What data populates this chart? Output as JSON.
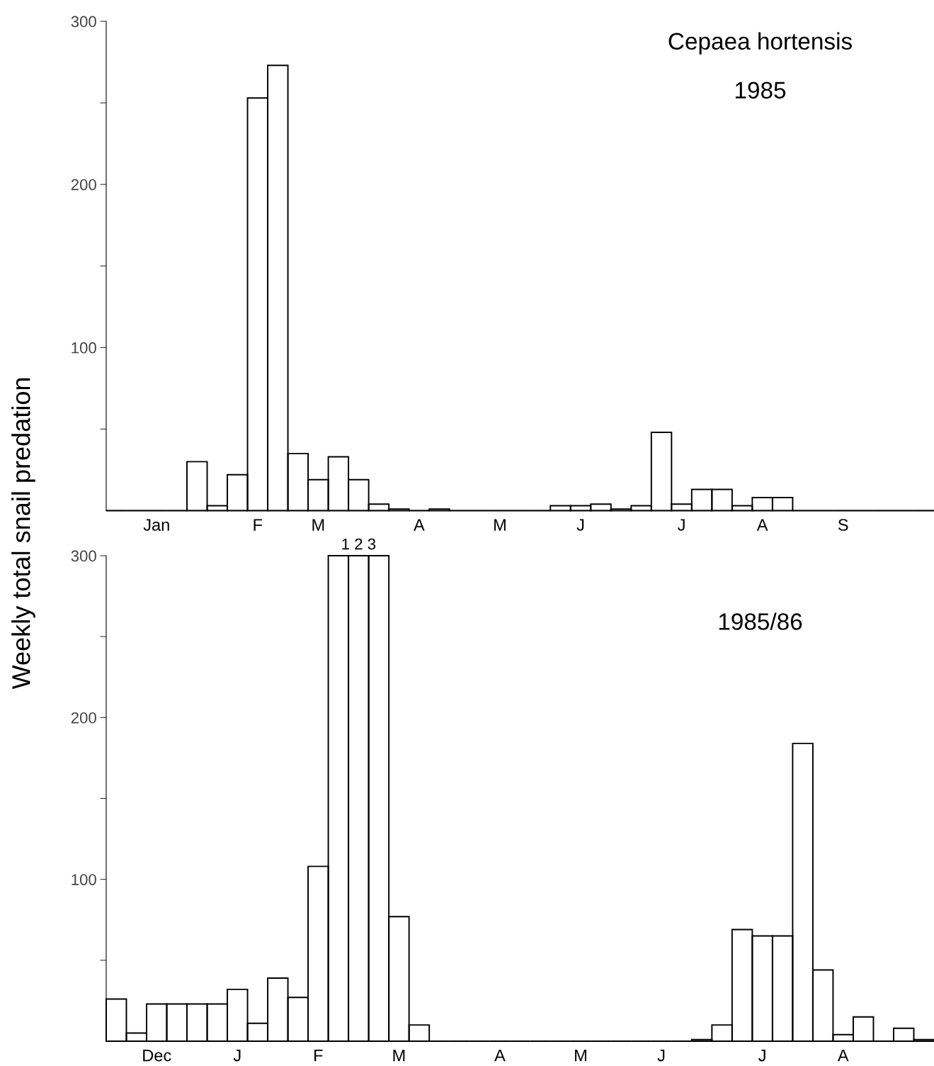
{
  "chart_data": [
    {
      "type": "bar",
      "title": "Cepaea hortensis",
      "subtitle": "1985",
      "ylabel": "Weekly total snail predation",
      "color": "#000000",
      "categories": [
        null,
        null,
        "Jan",
        null,
        null,
        null,
        null,
        "F",
        null,
        null,
        "M",
        null,
        null,
        null,
        null,
        "A",
        null,
        null,
        null,
        "M",
        null,
        null,
        null,
        "J",
        null,
        null,
        null,
        null,
        "J",
        null,
        null,
        null,
        "A",
        null,
        null,
        null,
        "S",
        null,
        null,
        null,
        null
      ],
      "values": [
        0,
        0,
        0,
        0,
        30,
        3,
        22,
        253,
        273,
        35,
        19,
        33,
        19,
        4,
        1,
        0,
        1,
        0,
        0,
        0,
        0,
        0,
        3,
        3,
        4,
        1,
        3,
        48,
        4,
        13,
        13,
        3,
        8,
        8,
        0,
        0,
        0,
        0,
        0,
        0,
        0
      ],
      "ylim": [
        0,
        300
      ],
      "yticks": [
        {
          "value": 50,
          "label": null
        },
        100,
        {
          "value": 150,
          "label": null
        },
        200,
        {
          "value": 250,
          "label": null
        },
        300
      ]
    },
    {
      "type": "bar",
      "subtitle": "1985/86",
      "color": "#000000",
      "categories": [
        null,
        null,
        "Dec",
        null,
        null,
        null,
        "J",
        null,
        null,
        null,
        "F",
        null,
        null,
        null,
        "M",
        null,
        null,
        null,
        null,
        "A",
        null,
        null,
        null,
        "M",
        null,
        null,
        null,
        "J",
        null,
        null,
        null,
        null,
        "J",
        null,
        null,
        null,
        "A",
        null,
        null,
        null,
        null
      ],
      "values": [
        26,
        5,
        23,
        23,
        23,
        23,
        32,
        11,
        39,
        27,
        108,
        300,
        300,
        300,
        77,
        10,
        0,
        0,
        0,
        0,
        0,
        0,
        0,
        0,
        0,
        0,
        0,
        0,
        0,
        1,
        10,
        69,
        65,
        65,
        184,
        44,
        4,
        15,
        0,
        8,
        1
      ],
      "ylim": [
        0,
        300
      ],
      "yticks": [
        {
          "value": 50,
          "label": null
        },
        100,
        {
          "value": 150,
          "label": null
        },
        200,
        {
          "value": 250,
          "label": null
        },
        300
      ],
      "annotations": [
        "1 2 3"
      ]
    }
  ]
}
